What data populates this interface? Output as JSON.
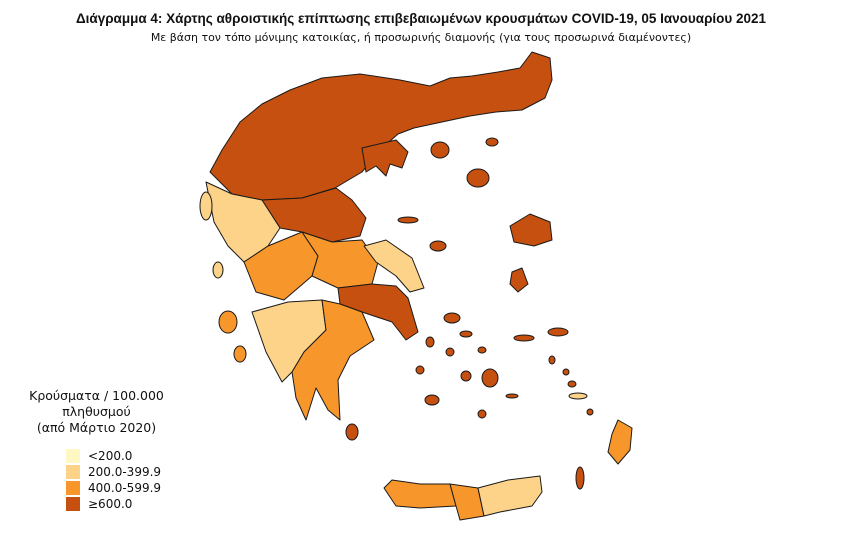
{
  "title": "Διάγραμμα 4: Χάρτης αθροιστικής επίπτωσης επιβεβαιωμένων κρουσμάτων COVID-19, 05 Ιανουαρίου 2021",
  "subtitle": "Με βάση τον τόπο μόνιμης κατοικίας, ή προσωρινής διαμονής (για τους προσωρινά διαμένοντες)",
  "legend": {
    "title_line1": "Κρούσματα / 100.000 πληθυσμού",
    "title_line2": "(από Μάρτιο 2020)",
    "classes": [
      {
        "label": "<200.0",
        "color": "#FFF7C4"
      },
      {
        "label": "200.0-399.9",
        "color": "#FDD38A"
      },
      {
        "label": "400.0-599.9",
        "color": "#F7962A"
      },
      {
        "label": "≥600.0",
        "color": "#C5500F"
      }
    ]
  }
}
